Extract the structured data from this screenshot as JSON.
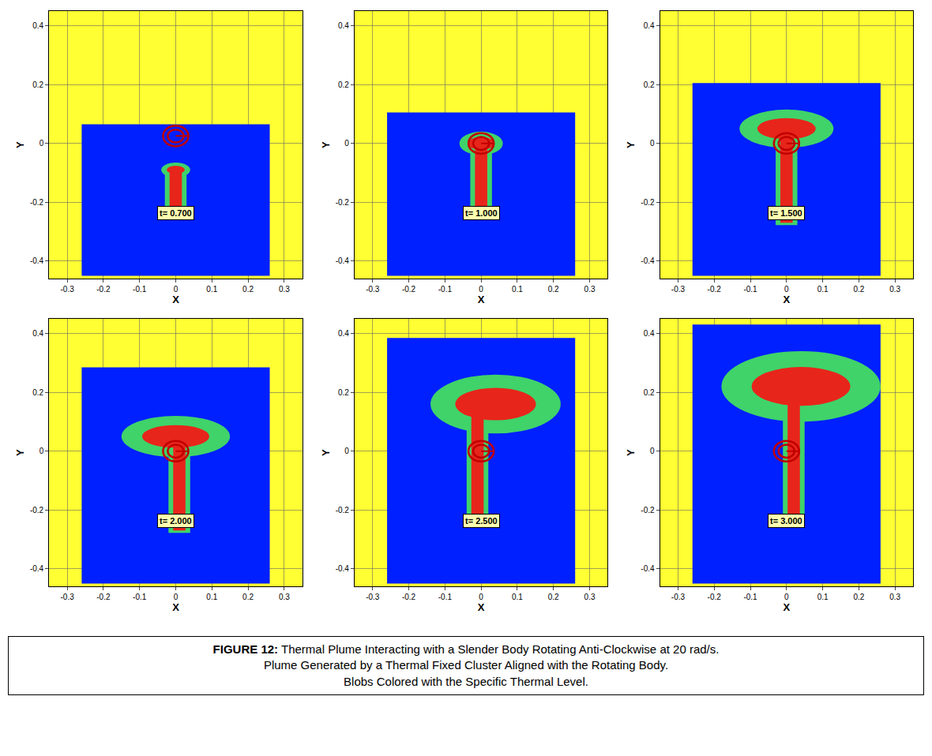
{
  "caption": [
    "FIGURE 12: Thermal Plume Interacting with a Slender Body Rotating Anti-Clockwise at 20 rad/s.",
    "Plume Generated by a Thermal Fixed Cluster Aligned with the Rotating Body.",
    "Blobs Colored with the Specific Thermal Level."
  ],
  "chart_data": [
    {
      "type": "contour",
      "x_label": "X",
      "y_label": "Y",
      "annotation": "t= 0.700",
      "xlim": [
        -0.35,
        0.35
      ],
      "ylim": [
        -0.46,
        0.45
      ],
      "xticks": [
        -0.3,
        -0.2,
        -0.1,
        0,
        0.1,
        0.2,
        0.3
      ],
      "yticks": [
        -0.4,
        -0.2,
        0,
        0.2,
        0.4
      ],
      "grid": true,
      "domain": {
        "x": [
          -0.26,
          0.26
        ],
        "y": [
          -0.45,
          0.065
        ]
      },
      "body": {
        "center": [
          0,
          0.025
        ],
        "radii": [
          0.022,
          0.035
        ]
      },
      "plume": {
        "stem_x": 0,
        "stem_bottom": -0.24,
        "cap_center": [
          0,
          -0.09
        ],
        "cap_size": [
          0.08,
          0.05
        ]
      }
    },
    {
      "type": "contour",
      "x_label": "X",
      "y_label": "Y",
      "annotation": "t= 1.000",
      "xlim": [
        -0.35,
        0.35
      ],
      "ylim": [
        -0.46,
        0.45
      ],
      "xticks": [
        -0.3,
        -0.2,
        -0.1,
        0,
        0.1,
        0.2,
        0.3
      ],
      "yticks": [
        -0.4,
        -0.2,
        0,
        0.2,
        0.4
      ],
      "grid": true,
      "domain": {
        "x": [
          -0.26,
          0.26
        ],
        "y": [
          -0.45,
          0.105
        ]
      },
      "body": {
        "center": [
          0,
          0.0
        ],
        "radii": [
          0.022,
          0.035
        ]
      },
      "plume": {
        "stem_x": 0,
        "stem_bottom": -0.25,
        "cap_center": [
          0,
          0.0
        ],
        "cap_size": [
          0.12,
          0.08
        ]
      }
    },
    {
      "type": "contour",
      "x_label": "X",
      "y_label": "Y",
      "annotation": "t= 1.500",
      "xlim": [
        -0.35,
        0.35
      ],
      "ylim": [
        -0.46,
        0.45
      ],
      "xticks": [
        -0.3,
        -0.2,
        -0.1,
        0,
        0.1,
        0.2,
        0.3
      ],
      "yticks": [
        -0.4,
        -0.2,
        0,
        0.2,
        0.4
      ],
      "grid": true,
      "domain": {
        "x": [
          -0.26,
          0.26
        ],
        "y": [
          -0.45,
          0.205
        ]
      },
      "body": {
        "center": [
          0,
          0.0
        ],
        "radii": [
          0.022,
          0.035
        ]
      },
      "plume": {
        "stem_x": 0,
        "stem_bottom": -0.27,
        "cap_center": [
          0,
          0.05
        ],
        "cap_size": [
          0.26,
          0.13
        ]
      }
    },
    {
      "type": "contour",
      "x_label": "X",
      "y_label": "Y",
      "annotation": "t= 2.000",
      "xlim": [
        -0.35,
        0.35
      ],
      "ylim": [
        -0.46,
        0.45
      ],
      "xticks": [
        -0.3,
        -0.2,
        -0.1,
        0,
        0.1,
        0.2,
        0.3
      ],
      "yticks": [
        -0.4,
        -0.2,
        0,
        0.2,
        0.4
      ],
      "grid": true,
      "domain": {
        "x": [
          -0.26,
          0.26
        ],
        "y": [
          -0.45,
          0.285
        ]
      },
      "body": {
        "center": [
          0,
          0.0
        ],
        "radii": [
          0.022,
          0.035
        ]
      },
      "plume": {
        "stem_x": 0.01,
        "stem_bottom": -0.27,
        "cap_center": [
          0,
          0.05
        ],
        "cap_size": [
          0.3,
          0.14
        ]
      }
    },
    {
      "type": "contour",
      "x_label": "X",
      "y_label": "Y",
      "annotation": "t= 2.500",
      "xlim": [
        -0.35,
        0.35
      ],
      "ylim": [
        -0.46,
        0.45
      ],
      "xticks": [
        -0.3,
        -0.2,
        -0.1,
        0,
        0.1,
        0.2,
        0.3
      ],
      "yticks": [
        -0.4,
        -0.2,
        0,
        0.2,
        0.4
      ],
      "grid": true,
      "domain": {
        "x": [
          -0.26,
          0.26
        ],
        "y": [
          -0.45,
          0.385
        ]
      },
      "body": {
        "center": [
          0,
          0.0
        ],
        "radii": [
          0.022,
          0.035
        ]
      },
      "plume": {
        "stem_x": -0.01,
        "stem_bottom": -0.24,
        "cap_center": [
          0.04,
          0.16
        ],
        "cap_size": [
          0.36,
          0.2
        ]
      }
    },
    {
      "type": "contour",
      "x_label": "X",
      "y_label": "Y",
      "annotation": "t= 3.000",
      "xlim": [
        -0.35,
        0.35
      ],
      "ylim": [
        -0.46,
        0.45
      ],
      "xticks": [
        -0.3,
        -0.2,
        -0.1,
        0,
        0.1,
        0.2,
        0.3
      ],
      "yticks": [
        -0.4,
        -0.2,
        0,
        0.2,
        0.4
      ],
      "grid": true,
      "domain": {
        "x": [
          -0.26,
          0.26
        ],
        "y": [
          -0.45,
          0.43
        ]
      },
      "body": {
        "center": [
          0,
          0.0
        ],
        "radii": [
          0.022,
          0.035
        ]
      },
      "plume": {
        "stem_x": 0.02,
        "stem_bottom": -0.22,
        "cap_center": [
          0.04,
          0.22
        ],
        "cap_size": [
          0.44,
          0.24
        ]
      }
    }
  ]
}
